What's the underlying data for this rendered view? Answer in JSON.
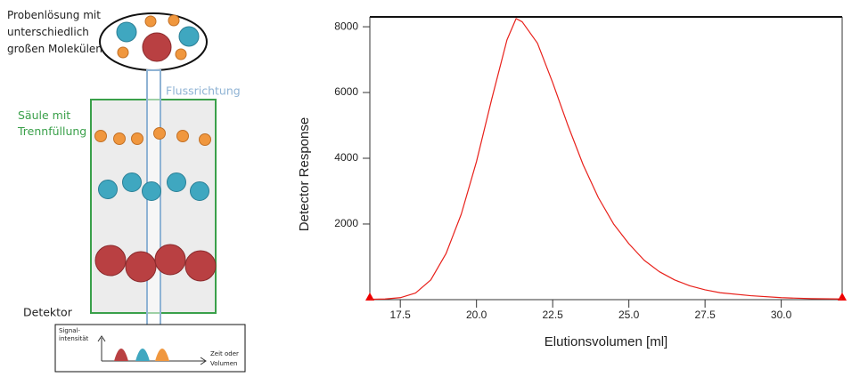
{
  "diagram": {
    "sample_label": [
      "Probenlösung mit",
      "unterschiedlich",
      "großen Molekülen"
    ],
    "flow_label": "Flussrichtung",
    "column_label": [
      "Säule mit",
      "Trennfüllung"
    ],
    "detector_label": "Detektor",
    "signal_label": [
      "Signal-",
      "intensität"
    ],
    "time_label": [
      "Zeit oder",
      "Volumen"
    ]
  },
  "chart_data": {
    "type": "line",
    "x_label": "Elutionsvolumen [ml]",
    "y_label": "Detector Response",
    "x": [
      16.5,
      17,
      17.5,
      18,
      18.5,
      19,
      19.5,
      20,
      20.5,
      21,
      21.3,
      21.5,
      22,
      22.5,
      23,
      23.5,
      24,
      24.5,
      25,
      25.5,
      26,
      26.5,
      27,
      27.5,
      28,
      29,
      30,
      31,
      32
    ],
    "series": [
      {
        "name": "Detector Response",
        "color": "#e8201a",
        "values": [
          -290,
          -280,
          -240,
          -100,
          300,
          1100,
          2300,
          3900,
          5800,
          7600,
          8250,
          8150,
          7500,
          6300,
          5000,
          3800,
          2800,
          2000,
          1400,
          900,
          550,
          300,
          120,
          0,
          -90,
          -180,
          -240,
          -270,
          -280
        ]
      }
    ],
    "xlim": [
      16.5,
      32
    ],
    "ylim": [
      -300,
      8300
    ],
    "xticks": [
      17.5,
      {
        "value": 20,
        "label": "20.0"
      },
      22.5,
      {
        "value": 25,
        "label": "25.0"
      },
      27.5,
      {
        "value": 30,
        "label": "30.0"
      }
    ],
    "yticks": [
      2000,
      4000,
      6000,
      8000
    ],
    "grid": false
  }
}
